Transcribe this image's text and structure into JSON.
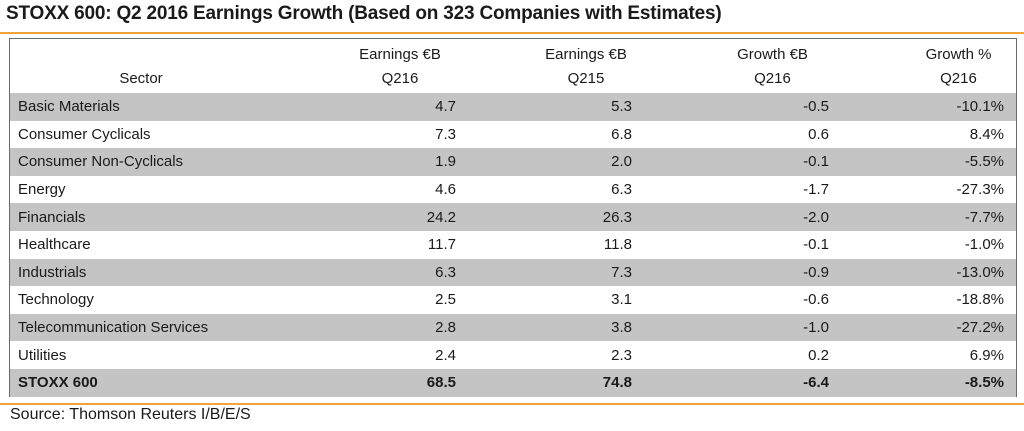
{
  "title": "STOXX 600: Q2 2016 Earnings Growth (Based on 323 Companies with Estimates)",
  "columns": {
    "sector": "Sector",
    "earnings_q216": {
      "line1": "Earnings €B",
      "line2": "Q216"
    },
    "earnings_q215": {
      "line1": "Earnings €B",
      "line2": "Q215"
    },
    "growth_eur": {
      "line1": "Growth €B",
      "line2": "Q216"
    },
    "growth_pct": {
      "line1": "Growth %",
      "line2": "Q216"
    }
  },
  "rows": [
    {
      "sector": "Basic Materials",
      "earnings_q216": "4.7",
      "earnings_q215": "5.3",
      "growth_eur": "-0.5",
      "growth_pct": "-10.1%"
    },
    {
      "sector": "Consumer Cyclicals",
      "earnings_q216": "7.3",
      "earnings_q215": "6.8",
      "growth_eur": "0.6",
      "growth_pct": "8.4%"
    },
    {
      "sector": "Consumer Non-Cyclicals",
      "earnings_q216": "1.9",
      "earnings_q215": "2.0",
      "growth_eur": "-0.1",
      "growth_pct": "-5.5%"
    },
    {
      "sector": "Energy",
      "earnings_q216": "4.6",
      "earnings_q215": "6.3",
      "growth_eur": "-1.7",
      "growth_pct": "-27.3%"
    },
    {
      "sector": "Financials",
      "earnings_q216": "24.2",
      "earnings_q215": "26.3",
      "growth_eur": "-2.0",
      "growth_pct": "-7.7%"
    },
    {
      "sector": "Healthcare",
      "earnings_q216": "11.7",
      "earnings_q215": "11.8",
      "growth_eur": "-0.1",
      "growth_pct": "-1.0%"
    },
    {
      "sector": "Industrials",
      "earnings_q216": "6.3",
      "earnings_q215": "7.3",
      "growth_eur": "-0.9",
      "growth_pct": "-13.0%"
    },
    {
      "sector": "Technology",
      "earnings_q216": "2.5",
      "earnings_q215": "3.1",
      "growth_eur": "-0.6",
      "growth_pct": "-18.8%"
    },
    {
      "sector": "Telecommunication Services",
      "earnings_q216": "2.8",
      "earnings_q215": "3.8",
      "growth_eur": "-1.0",
      "growth_pct": "-27.2%"
    },
    {
      "sector": "Utilities",
      "earnings_q216": "2.4",
      "earnings_q215": "2.3",
      "growth_eur": "0.2",
      "growth_pct": "6.9%"
    }
  ],
  "total": {
    "sector": "STOXX 600",
    "earnings_q216": "68.5",
    "earnings_q215": "74.8",
    "growth_eur": "-6.4",
    "growth_pct": "-8.5%"
  },
  "source": "Source: Thomson Reuters I/B/E/S",
  "colors": {
    "accent_rule": "#f2a33a",
    "row_shade": "#c4c4c4"
  }
}
